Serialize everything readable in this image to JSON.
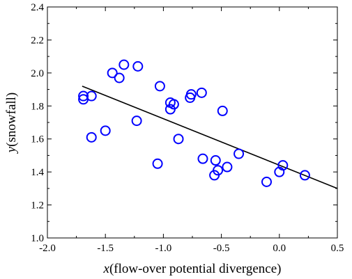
{
  "chart_data": {
    "type": "scatter",
    "title": "",
    "xlabel": {
      "var": "x",
      "text": "(flow-over potential divergence)"
    },
    "ylabel": {
      "var": "y",
      "text": "(snowfall)"
    },
    "xlim": [
      -2.0,
      0.5
    ],
    "ylim": [
      1.0,
      2.4
    ],
    "xticks": [
      "-2.0",
      "-1.5",
      "-1.0",
      "-0.5",
      "0.0",
      "0.5"
    ],
    "xtick_values": [
      -2.0,
      -1.5,
      -1.0,
      -0.5,
      0.0,
      0.5
    ],
    "yticks": [
      "1.0",
      "1.2",
      "1.4",
      "1.6",
      "1.8",
      "2.0",
      "2.2",
      "2.4"
    ],
    "ytick_values": [
      1.0,
      1.2,
      1.4,
      1.6,
      1.8,
      2.0,
      2.2,
      2.4
    ],
    "grid": false,
    "legend": "none",
    "marker_color": "#0000ff",
    "line_color": "#000000",
    "points": [
      {
        "x": -1.69,
        "y": 1.86
      },
      {
        "x": -1.69,
        "y": 1.84
      },
      {
        "x": -1.62,
        "y": 1.86
      },
      {
        "x": -1.62,
        "y": 1.61
      },
      {
        "x": -1.5,
        "y": 1.65
      },
      {
        "x": -1.44,
        "y": 2.0
      },
      {
        "x": -1.38,
        "y": 1.97
      },
      {
        "x": -1.34,
        "y": 2.05
      },
      {
        "x": -1.22,
        "y": 2.04
      },
      {
        "x": -1.23,
        "y": 1.71
      },
      {
        "x": -1.05,
        "y": 1.45
      },
      {
        "x": -1.03,
        "y": 1.92
      },
      {
        "x": -0.94,
        "y": 1.82
      },
      {
        "x": -0.94,
        "y": 1.78
      },
      {
        "x": -0.91,
        "y": 1.81
      },
      {
        "x": -0.87,
        "y": 1.6
      },
      {
        "x": -0.77,
        "y": 1.85
      },
      {
        "x": -0.76,
        "y": 1.87
      },
      {
        "x": -0.67,
        "y": 1.88
      },
      {
        "x": -0.66,
        "y": 1.48
      },
      {
        "x": -0.56,
        "y": 1.38
      },
      {
        "x": -0.55,
        "y": 1.47
      },
      {
        "x": -0.53,
        "y": 1.41
      },
      {
        "x": -0.49,
        "y": 1.77
      },
      {
        "x": -0.45,
        "y": 1.43
      },
      {
        "x": -0.35,
        "y": 1.51
      },
      {
        "x": -0.11,
        "y": 1.34
      },
      {
        "x": 0.0,
        "y": 1.4
      },
      {
        "x": 0.03,
        "y": 1.44
      },
      {
        "x": 0.22,
        "y": 1.38
      }
    ],
    "fit_line": {
      "x": [
        -1.7,
        0.5
      ],
      "y": [
        1.92,
        1.3
      ]
    }
  }
}
